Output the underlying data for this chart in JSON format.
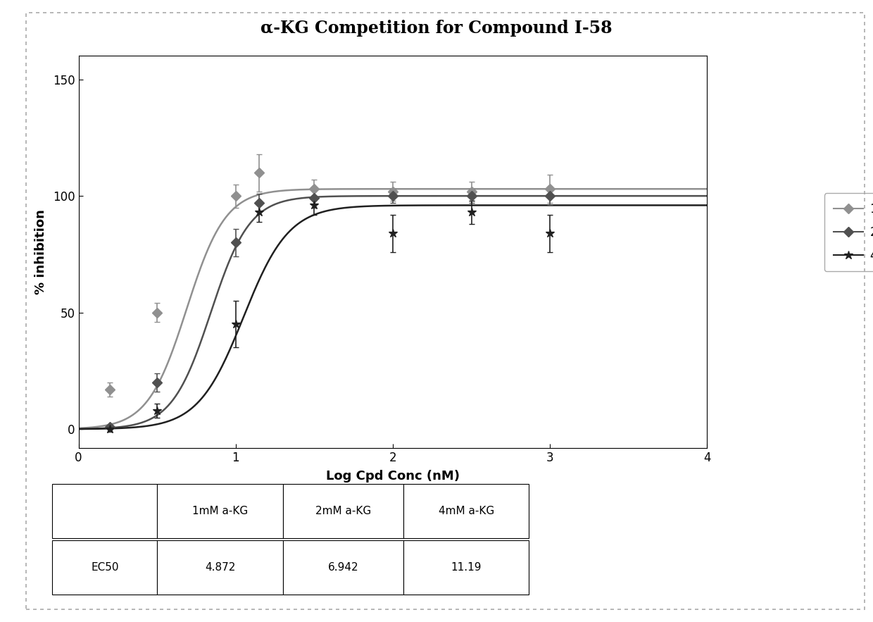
{
  "title": "α-KG Competition for Compound I-58",
  "xlabel": "Log Cpd Conc (nM)",
  "ylabel": "% inhibition",
  "xlim": [
    0,
    4
  ],
  "ylim": [
    -8,
    160
  ],
  "yticks": [
    0,
    50,
    100,
    150
  ],
  "xticks": [
    0,
    1,
    2,
    3,
    4
  ],
  "series": [
    {
      "label": "1mM a-KG",
      "ec50_log": 0.6876,
      "hill_n": 3.5,
      "top": 103,
      "color": "#909090",
      "marker": "D",
      "markersize": 7,
      "data_x": [
        0.2,
        0.5,
        1.0,
        1.15,
        1.5,
        2.0,
        2.5,
        3.0
      ],
      "data_y": [
        17,
        50,
        100,
        110,
        103,
        102,
        102,
        103
      ],
      "yerr": [
        3,
        4,
        5,
        8,
        4,
        4,
        4,
        6
      ]
    },
    {
      "label": "2mM a-KG",
      "ec50_log": 0.8414,
      "hill_n": 3.5,
      "top": 100,
      "color": "#505050",
      "marker": "D",
      "markersize": 7,
      "data_x": [
        0.2,
        0.5,
        1.0,
        1.15,
        1.5,
        2.0,
        2.5,
        3.0
      ],
      "data_y": [
        1,
        20,
        80,
        97,
        99,
        100,
        100,
        100
      ],
      "yerr": [
        1,
        4,
        6,
        4,
        4,
        3,
        3,
        4
      ]
    },
    {
      "label": "4mM a-KG",
      "ec50_log": 1.049,
      "hill_n": 3.0,
      "top": 96,
      "color": "#202020",
      "marker": "*",
      "markersize": 9,
      "data_x": [
        0.2,
        0.5,
        1.0,
        1.15,
        1.5,
        2.0,
        2.5,
        3.0
      ],
      "data_y": [
        0,
        8,
        45,
        93,
        96,
        84,
        93,
        84
      ],
      "yerr": [
        1,
        3,
        10,
        4,
        4,
        8,
        5,
        8
      ]
    }
  ],
  "table_data": [
    [
      "",
      "1mM a-KG",
      "2mM a-KG",
      "4mM a-KG"
    ],
    [
      "EC50",
      "4.872",
      "6.942",
      "11.19"
    ]
  ],
  "background_color": "#ffffff",
  "title_fontsize": 17,
  "axis_label_fontsize": 13,
  "tick_fontsize": 12,
  "legend_fontsize": 12
}
